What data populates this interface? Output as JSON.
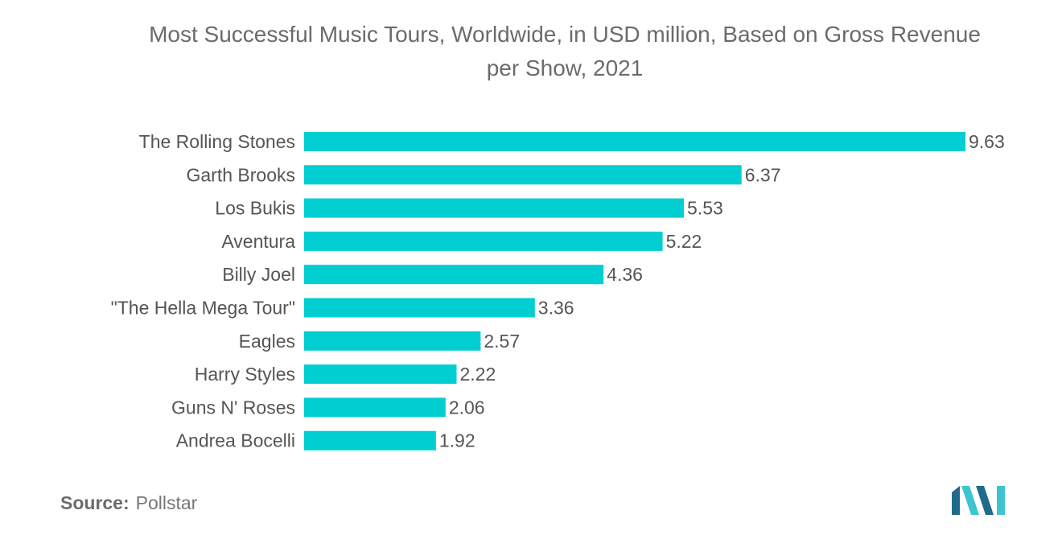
{
  "title_line1": "Most Successful Music Tours, Worldwide, in USD million, Based on Gross Revenue",
  "title_line2": "per Show, 2021",
  "source_label": "Source:",
  "source_value": "Pollstar",
  "colors": {
    "bar": "#00CED1",
    "text": "#555555",
    "logo_dark": "#1f6b8c",
    "logo_light": "#3ec4cf"
  },
  "chart_data": {
    "type": "bar",
    "orientation": "horizontal",
    "title": "Most Successful Music Tours, Worldwide, in USD million, Based on Gross Revenue per Show, 2021",
    "categories": [
      "The Rolling Stones",
      "Garth Brooks",
      "Los Bukis",
      "Aventura",
      "Billy Joel",
      "\"The Hella Mega Tour\"",
      "Eagles",
      "Harry Styles",
      "Guns N' Roses",
      "Andrea Bocelli"
    ],
    "values": [
      9.63,
      6.37,
      5.53,
      5.22,
      4.36,
      3.36,
      2.57,
      2.22,
      2.06,
      1.92
    ],
    "xlim": [
      0,
      9.63
    ],
    "grid": false,
    "legend": "none"
  }
}
